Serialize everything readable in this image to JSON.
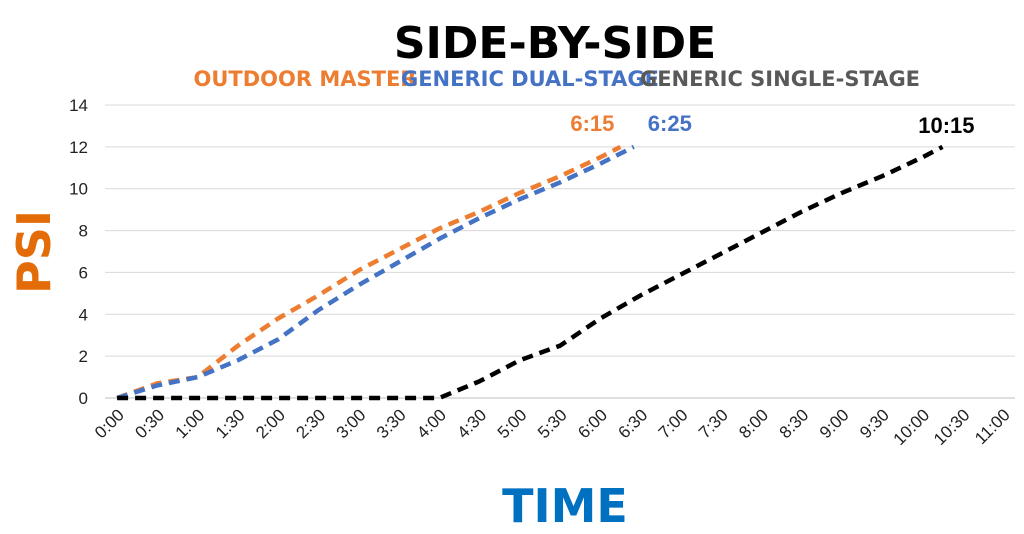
{
  "chart_data": {
    "type": "line",
    "title": "SIDE-BY-SIDE",
    "xlabel": "TIME",
    "ylabel": "PSI",
    "ylim": [
      0,
      14
    ],
    "yticks": [
      "0",
      "2",
      "4",
      "6",
      "8",
      "10",
      "12",
      "14"
    ],
    "categories": [
      "0:00",
      "0:30",
      "1:00",
      "1:30",
      "2:00",
      "2:30",
      "3:00",
      "3:30",
      "4:00",
      "4:30",
      "5:00",
      "5:30",
      "6:00",
      "6:30",
      "7:00",
      "7:30",
      "8:00",
      "8:30",
      "9:00",
      "9:30",
      "10:00",
      "10:30",
      "11:00"
    ],
    "grid": true,
    "legend_position": "top-center",
    "series": [
      {
        "name": "OUTDOOR MASTER",
        "color": "#ED7D31",
        "x": [
          0,
          0.5,
          1,
          1.5,
          2,
          2.5,
          3,
          3.5,
          4,
          4.5,
          5,
          5.5,
          6,
          6.25
        ],
        "values": [
          0,
          0.7,
          1.0,
          2.5,
          3.8,
          4.9,
          6.1,
          7.1,
          8.1,
          8.9,
          9.8,
          10.6,
          11.5,
          12
        ],
        "end_label": "6:15"
      },
      {
        "name": "GENERIC DUAL-STAGE",
        "color": "#4472C4",
        "x": [
          0,
          0.5,
          1,
          1.5,
          2,
          2.5,
          3,
          3.5,
          4,
          4.5,
          5,
          5.5,
          6,
          6.4167
        ],
        "values": [
          0,
          0.6,
          1.0,
          1.8,
          2.8,
          4.2,
          5.4,
          6.5,
          7.6,
          8.6,
          9.5,
          10.3,
          11.2,
          12
        ],
        "end_label": "6:25"
      },
      {
        "name": "GENERIC SINGLE-STAGE",
        "color": "#000000",
        "legend_color": "#595959",
        "x": [
          0,
          0.5,
          1,
          1.5,
          2,
          2.5,
          3,
          3.5,
          4,
          4.5,
          5,
          5.5,
          6,
          6.5,
          7,
          7.5,
          8,
          8.5,
          9,
          9.5,
          10,
          10.25
        ],
        "values": [
          0,
          0,
          0,
          0,
          0,
          0,
          0,
          0,
          0,
          0.8,
          1.8,
          2.5,
          3.8,
          4.9,
          5.9,
          6.9,
          7.9,
          8.9,
          9.8,
          10.6,
          11.5,
          12
        ],
        "end_label": "10:15"
      }
    ]
  },
  "colors": {
    "title": "#000000",
    "axis_label": "#E36C09",
    "xlabel": "#0070C0",
    "grid": "#D9D9D9",
    "axis": "#BFBFBF"
  }
}
